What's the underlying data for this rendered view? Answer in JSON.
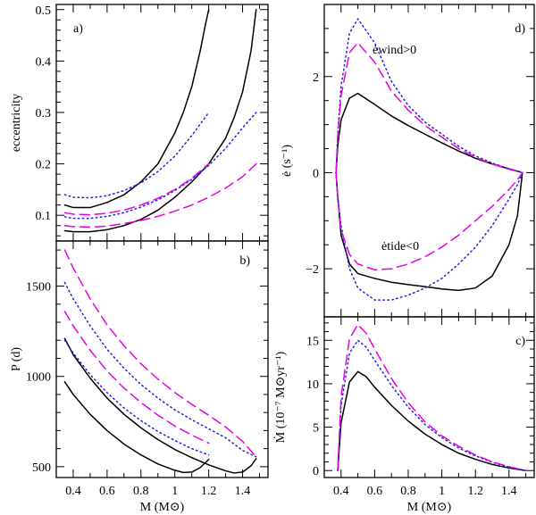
{
  "colors": {
    "solid": "#000000",
    "dashed": "#e600e6",
    "dotted": "#2222dd"
  },
  "chart_data": [
    {
      "id": "a",
      "type": "line",
      "panel_label": "a)",
      "xlabel": "",
      "ylabel": "eccentricity",
      "xlim": [
        0.3,
        1.55
      ],
      "ylim": [
        0.05,
        0.51
      ],
      "xticks": [
        0.4,
        0.6,
        0.8,
        1.0,
        1.2,
        1.4
      ],
      "xticklabels": [
        "",
        "",
        "",
        "",
        "",
        ""
      ],
      "yticks": [
        0.1,
        0.2,
        0.3,
        0.4,
        0.5
      ],
      "yticklabels": [
        "0.1",
        "0.2",
        "0.3",
        "0.4",
        "0.5"
      ],
      "series": [
        {
          "name": "solid-upper",
          "style": "solid",
          "x": [
            0.35,
            0.4,
            0.5,
            0.6,
            0.7,
            0.8,
            0.9,
            1.0,
            1.05,
            1.1,
            1.15,
            1.18,
            1.2
          ],
          "y": [
            0.12,
            0.115,
            0.115,
            0.125,
            0.14,
            0.165,
            0.2,
            0.26,
            0.3,
            0.35,
            0.42,
            0.47,
            0.5
          ]
        },
        {
          "name": "solid-lower",
          "style": "solid",
          "x": [
            0.35,
            0.4,
            0.5,
            0.6,
            0.7,
            0.8,
            0.9,
            1.0,
            1.1,
            1.2,
            1.3,
            1.35,
            1.4,
            1.45,
            1.48
          ],
          "y": [
            0.07,
            0.068,
            0.068,
            0.072,
            0.08,
            0.092,
            0.11,
            0.135,
            0.165,
            0.2,
            0.25,
            0.29,
            0.34,
            0.42,
            0.5
          ]
        },
        {
          "name": "dotted-upper",
          "style": "dotted",
          "x": [
            0.35,
            0.4,
            0.5,
            0.6,
            0.7,
            0.8,
            0.9,
            1.0,
            1.1,
            1.2
          ],
          "y": [
            0.14,
            0.135,
            0.134,
            0.138,
            0.148,
            0.163,
            0.185,
            0.215,
            0.255,
            0.3
          ]
        },
        {
          "name": "dotted-lower",
          "style": "dotted",
          "x": [
            0.35,
            0.4,
            0.5,
            0.6,
            0.7,
            0.8,
            0.9,
            1.0,
            1.1,
            1.2,
            1.3,
            1.4,
            1.48
          ],
          "y": [
            0.097,
            0.094,
            0.094,
            0.098,
            0.105,
            0.116,
            0.13,
            0.148,
            0.17,
            0.197,
            0.23,
            0.27,
            0.3
          ]
        },
        {
          "name": "dashed-upper",
          "style": "dashed",
          "x": [
            0.35,
            0.4,
            0.5,
            0.6,
            0.7,
            0.8,
            0.9,
            1.0,
            1.1,
            1.2
          ],
          "y": [
            0.105,
            0.102,
            0.101,
            0.104,
            0.11,
            0.12,
            0.133,
            0.15,
            0.172,
            0.2
          ]
        },
        {
          "name": "dashed-lower",
          "style": "dashed",
          "x": [
            0.35,
            0.4,
            0.5,
            0.6,
            0.7,
            0.8,
            0.9,
            1.0,
            1.1,
            1.2,
            1.3,
            1.4,
            1.48
          ],
          "y": [
            0.08,
            0.078,
            0.077,
            0.079,
            0.084,
            0.09,
            0.098,
            0.108,
            0.12,
            0.135,
            0.153,
            0.175,
            0.2
          ]
        }
      ]
    },
    {
      "id": "b",
      "type": "line",
      "panel_label": "b)",
      "xlabel": "M (M⊙)",
      "ylabel": "P (d)",
      "xlim": [
        0.3,
        1.55
      ],
      "ylim": [
        440,
        1750
      ],
      "xticks": [
        0.4,
        0.6,
        0.8,
        1.0,
        1.2,
        1.4
      ],
      "xticklabels": [
        "0.4",
        "0.6",
        "0.8",
        "1",
        "1.2",
        "1.4"
      ],
      "yticks": [
        500,
        1000,
        1500
      ],
      "yticklabels": [
        "500",
        "1000",
        "1500"
      ],
      "series": [
        {
          "name": "solid-inner",
          "style": "solid",
          "x": [
            0.35,
            0.4,
            0.5,
            0.6,
            0.7,
            0.8,
            0.9,
            1.0,
            1.05,
            1.1,
            1.15,
            1.2
          ],
          "y": [
            970,
            900,
            790,
            700,
            625,
            565,
            515,
            480,
            468,
            470,
            495,
            540
          ]
        },
        {
          "name": "solid-outer",
          "style": "solid",
          "x": [
            0.35,
            0.4,
            0.5,
            0.6,
            0.7,
            0.8,
            0.9,
            1.0,
            1.1,
            1.2,
            1.3,
            1.35,
            1.4,
            1.45,
            1.48
          ],
          "y": [
            1210,
            1120,
            990,
            880,
            790,
            715,
            650,
            595,
            550,
            510,
            477,
            465,
            470,
            505,
            545
          ]
        },
        {
          "name": "dotted-inner",
          "style": "dotted",
          "x": [
            0.35,
            0.4,
            0.5,
            0.6,
            0.7,
            0.8,
            0.9,
            1.0,
            1.1,
            1.2
          ],
          "y": [
            1200,
            1130,
            1010,
            910,
            825,
            755,
            695,
            645,
            600,
            565
          ]
        },
        {
          "name": "dotted-outer",
          "style": "dotted",
          "x": [
            0.35,
            0.4,
            0.5,
            0.6,
            0.7,
            0.8,
            0.9,
            1.0,
            1.1,
            1.2,
            1.3,
            1.4,
            1.48
          ],
          "y": [
            1520,
            1430,
            1280,
            1150,
            1045,
            955,
            880,
            815,
            760,
            710,
            660,
            590,
            555
          ]
        },
        {
          "name": "dashed-inner",
          "style": "dashed",
          "x": [
            0.35,
            0.4,
            0.5,
            0.6,
            0.7,
            0.8,
            0.9,
            1.0,
            1.1,
            1.2
          ],
          "y": [
            1360,
            1280,
            1145,
            1030,
            935,
            855,
            785,
            725,
            675,
            630
          ]
        },
        {
          "name": "dashed-outer",
          "style": "dashed",
          "x": [
            0.35,
            0.4,
            0.5,
            0.6,
            0.7,
            0.8,
            0.9,
            1.0,
            1.1,
            1.2,
            1.3,
            1.4,
            1.48
          ],
          "y": [
            1700,
            1600,
            1430,
            1285,
            1170,
            1070,
            985,
            910,
            845,
            785,
            720,
            640,
            555
          ]
        }
      ]
    },
    {
      "id": "d",
      "type": "line",
      "panel_label": "d)",
      "xlabel": "",
      "ylabel": "ė (s⁻¹)",
      "xlim": [
        0.3,
        1.55
      ],
      "ylim": [
        -3.0,
        3.5
      ],
      "xticks": [
        0.4,
        0.6,
        0.8,
        1.0,
        1.2,
        1.4
      ],
      "xticklabels": [
        "",
        "",
        "",
        "",
        "",
        ""
      ],
      "yticks": [
        -2,
        0,
        2
      ],
      "yticklabels": [
        "−2",
        "0",
        "2"
      ],
      "annotations": {
        "upper": "ėwind>0",
        "lower": "ėtide<0"
      },
      "series": [
        {
          "name": "solid-wind",
          "style": "solid",
          "x": [
            0.37,
            0.38,
            0.4,
            0.45,
            0.5,
            0.6,
            0.7,
            0.8,
            0.9,
            1.0,
            1.1,
            1.2,
            1.3,
            1.4,
            1.48
          ],
          "y": [
            0,
            0.55,
            1.1,
            1.55,
            1.65,
            1.42,
            1.18,
            0.98,
            0.8,
            0.62,
            0.45,
            0.3,
            0.18,
            0.08,
            0
          ]
        },
        {
          "name": "solid-tide",
          "style": "solid",
          "x": [
            0.37,
            0.38,
            0.4,
            0.45,
            0.5,
            0.6,
            0.7,
            0.8,
            0.9,
            1.0,
            1.1,
            1.2,
            1.3,
            1.4,
            1.45,
            1.48
          ],
          "y": [
            0,
            -0.5,
            -1.3,
            -1.9,
            -2.1,
            -2.2,
            -2.28,
            -2.33,
            -2.37,
            -2.42,
            -2.45,
            -2.4,
            -2.15,
            -1.5,
            -0.9,
            0
          ]
        },
        {
          "name": "dotted-wind",
          "style": "dotted",
          "x": [
            0.37,
            0.38,
            0.4,
            0.45,
            0.5,
            0.6,
            0.7,
            0.8,
            0.9,
            1.0,
            1.1,
            1.2,
            1.3,
            1.4,
            1.48
          ],
          "y": [
            0,
            0.8,
            1.8,
            2.9,
            3.2,
            2.7,
            1.9,
            1.4,
            1.05,
            0.8,
            0.55,
            0.35,
            0.2,
            0.08,
            0
          ]
        },
        {
          "name": "dotted-tide",
          "style": "dotted",
          "x": [
            0.37,
            0.38,
            0.4,
            0.45,
            0.5,
            0.6,
            0.7,
            0.8,
            0.9,
            1.0,
            1.1,
            1.2,
            1.3,
            1.4,
            1.45,
            1.48
          ],
          "y": [
            0,
            -0.5,
            -1.1,
            -2.0,
            -2.4,
            -2.65,
            -2.65,
            -2.55,
            -2.4,
            -2.2,
            -1.9,
            -1.55,
            -1.1,
            -0.55,
            -0.25,
            0
          ]
        },
        {
          "name": "dashed-wind",
          "style": "dashed",
          "x": [
            0.37,
            0.38,
            0.4,
            0.45,
            0.5,
            0.6,
            0.7,
            0.8,
            0.9,
            1.0,
            1.1,
            1.2,
            1.3,
            1.4,
            1.48
          ],
          "y": [
            0,
            0.75,
            1.6,
            2.5,
            2.7,
            2.3,
            1.7,
            1.3,
            0.98,
            0.74,
            0.5,
            0.32,
            0.18,
            0.07,
            0
          ]
        },
        {
          "name": "dashed-tide",
          "style": "dashed",
          "x": [
            0.37,
            0.38,
            0.4,
            0.45,
            0.5,
            0.6,
            0.7,
            0.8,
            0.9,
            1.0,
            1.1,
            1.2,
            1.3,
            1.4,
            1.45,
            1.48
          ],
          "y": [
            0,
            -0.5,
            -1.2,
            -1.7,
            -1.9,
            -2.02,
            -2.0,
            -1.9,
            -1.75,
            -1.55,
            -1.3,
            -1.0,
            -0.7,
            -0.35,
            -0.15,
            0
          ]
        }
      ]
    },
    {
      "id": "c",
      "type": "line",
      "panel_label": "c)",
      "xlabel": "M (M⊙)",
      "ylabel": "Ṁ (10⁻⁷ M⊙yr⁻¹)",
      "xlim": [
        0.3,
        1.55
      ],
      "ylim": [
        -0.8,
        17.7
      ],
      "xticks": [
        0.4,
        0.6,
        0.8,
        1.0,
        1.2,
        1.4
      ],
      "xticklabels": [
        "0.4",
        "0.6",
        "0.8",
        "1",
        "1.2",
        "1.4"
      ],
      "yticks": [
        0,
        5,
        10,
        15
      ],
      "yticklabels": [
        "0",
        "5",
        "10",
        "15"
      ],
      "series": [
        {
          "name": "solid",
          "style": "solid",
          "x": [
            0.38,
            0.4,
            0.45,
            0.5,
            0.55,
            0.6,
            0.7,
            0.8,
            0.9,
            1.0,
            1.1,
            1.2,
            1.3,
            1.4,
            1.5
          ],
          "y": [
            0,
            5.5,
            10.2,
            11.4,
            10.8,
            9.6,
            7.5,
            5.7,
            4.2,
            3.0,
            2.0,
            1.3,
            0.7,
            0.3,
            0
          ]
        },
        {
          "name": "dotted",
          "style": "dotted",
          "x": [
            0.38,
            0.4,
            0.45,
            0.5,
            0.55,
            0.6,
            0.7,
            0.8,
            0.9,
            1.0,
            1.1,
            1.2,
            1.3,
            1.4,
            1.5
          ],
          "y": [
            0,
            7.5,
            13.5,
            15.0,
            14.2,
            12.7,
            9.8,
            7.3,
            5.3,
            3.8,
            2.6,
            1.7,
            0.95,
            0.4,
            0
          ]
        },
        {
          "name": "dashed",
          "style": "dashed",
          "x": [
            0.38,
            0.4,
            0.45,
            0.5,
            0.55,
            0.6,
            0.7,
            0.8,
            0.9,
            1.0,
            1.1,
            1.2,
            1.3,
            1.4,
            1.5
          ],
          "y": [
            0,
            8.5,
            15.2,
            16.8,
            15.8,
            14.0,
            10.6,
            7.8,
            5.6,
            4.0,
            2.8,
            1.8,
            1.0,
            0.45,
            0
          ]
        }
      ]
    }
  ]
}
